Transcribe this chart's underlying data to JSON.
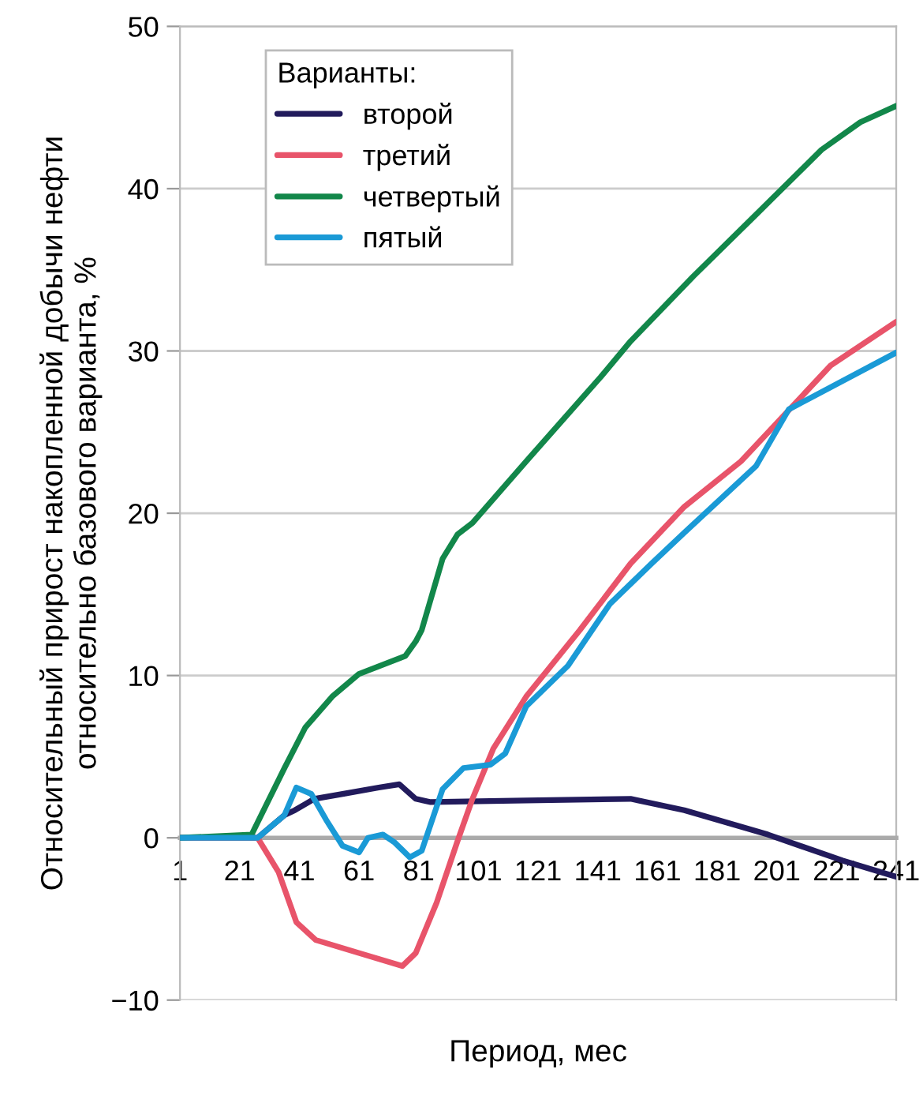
{
  "chart_data": {
    "type": "line",
    "xlabel": "Период, мес",
    "ylabel": "Относительный прирост накопленной добычи нефти\nотносительно базового варианта, %",
    "legend_title": "Варианты:",
    "legend": "top left",
    "grid": "y",
    "marker": "none",
    "line_style": "solid",
    "xlim": [
      1,
      241
    ],
    "xticks": [
      1,
      21,
      41,
      61,
      81,
      101,
      121,
      141,
      161,
      181,
      201,
      221,
      241
    ],
    "ylim": [
      -10,
      50
    ],
    "yticks": [
      {
        "value": -10,
        "label": "−10"
      },
      0,
      10,
      20,
      30,
      40,
      50
    ],
    "series": [
      {
        "name": "второй",
        "color": "#221b5c",
        "x": [
          1,
          27,
          36,
          39.5,
          46,
          55.5,
          67.6,
          74.5,
          80,
          85,
          117,
          152,
          170,
          198,
          223,
          241
        ],
        "values": [
          0,
          0,
          1.4,
          1.7,
          2.4,
          2.7,
          3.1,
          3.3,
          2.4,
          2.2,
          2.3,
          2.4,
          1.7,
          0.2,
          -1.4,
          -2.4
        ]
      },
      {
        "name": "третий",
        "color": "#e8546a",
        "x": [
          1,
          27,
          34,
          40,
          46.5,
          61,
          75.5,
          80,
          87,
          94,
          99,
          106,
          117,
          135,
          152,
          170,
          189,
          219,
          241
        ],
        "values": [
          0,
          0,
          -2.1,
          -5.2,
          -6.3,
          -7.1,
          -7.9,
          -7.1,
          -4,
          -0.2,
          2.4,
          5.5,
          8.7,
          12.8,
          16.9,
          20.4,
          23.2,
          29.1,
          31.8
        ]
      },
      {
        "name": "четвертый",
        "color": "#12874a",
        "x": [
          1,
          25,
          36,
          43,
          52,
          61,
          76.5,
          80,
          82,
          89,
          94,
          99,
          117,
          142,
          152,
          173,
          194,
          216,
          229,
          241
        ],
        "values": [
          0,
          0.2,
          4.3,
          6.8,
          8.7,
          10.1,
          11.2,
          12.1,
          12.8,
          17.2,
          18.7,
          19.4,
          23.2,
          28.4,
          30.6,
          34.6,
          38.4,
          42.4,
          44.1,
          45.1
        ]
      },
      {
        "name": "пятый",
        "color": "#1a9ad6",
        "x": [
          1,
          27,
          36,
          40,
          45,
          50,
          55.5,
          61,
          64,
          69,
          73,
          78,
          82,
          89,
          96,
          105,
          110,
          117,
          131,
          145,
          159,
          170,
          194,
          205,
          241
        ],
        "values": [
          0,
          0,
          1.4,
          3.1,
          2.7,
          1.1,
          -0.5,
          -0.9,
          0,
          0.2,
          -0.3,
          -1.2,
          -0.8,
          3.0,
          4.3,
          4.5,
          5.2,
          8.1,
          10.6,
          14.4,
          16.9,
          18.8,
          22.9,
          26.4,
          29.9
        ]
      }
    ]
  }
}
